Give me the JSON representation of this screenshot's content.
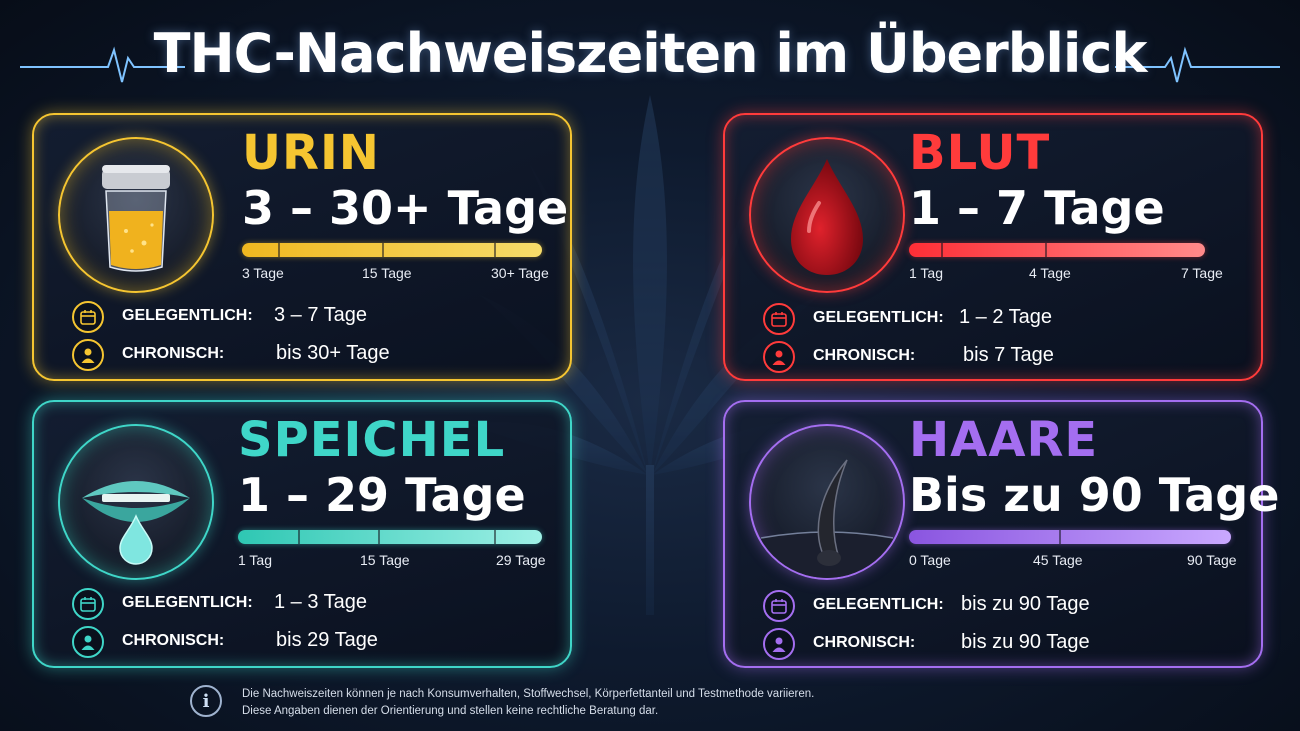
{
  "title": "THC-Nachweiszeiten im Überblick",
  "cards": {
    "urin": {
      "title": "URIN",
      "range": "3 – 30+ Tage",
      "ticks": [
        "3 Tage",
        "15 Tage",
        "30+ Tage"
      ],
      "occasional_label": "GELEGENTLICH:",
      "occasional_value": "3 – 7 Tage",
      "chronic_label": "CHRONISCH:",
      "chronic_value": "bis 30+ Tage",
      "color": "#f5c531"
    },
    "blut": {
      "title": "BLUT",
      "range": "1 – 7 Tage",
      "ticks": [
        "1 Tag",
        "4 Tage",
        "7 Tage"
      ],
      "occasional_label": "GELEGENTLICH:",
      "occasional_value": "1 – 2 Tage",
      "chronic_label": "CHRONISCH:",
      "chronic_value": "bis 7 Tage",
      "color": "#ff3b3b"
    },
    "speichel": {
      "title": "SPEICHEL",
      "range": "1 – 29 Tage",
      "ticks": [
        "1 Tag",
        "15 Tage",
        "29 Tage"
      ],
      "occasional_label": "GELEGENTLICH:",
      "occasional_value": "1 – 3 Tage",
      "chronic_label": "CHRONISCH:",
      "chronic_value": "bis 29 Tage",
      "color": "#3fd6c8"
    },
    "haare": {
      "title": "HAARE",
      "range": "Bis zu 90 Tage",
      "ticks": [
        "0 Tage",
        "45 Tage",
        "90 Tage"
      ],
      "occasional_label": "GELEGENTLICH:",
      "occasional_value": "bis zu 90 Tage",
      "chronic_label": "CHRONISCH:",
      "chronic_value": "bis zu 90 Tage",
      "color": "#a46ef0"
    }
  },
  "footer": {
    "line1": "Die Nachweiszeiten können je nach Konsumverhalten, Stoffwechsel, Körperfettanteil und Testmethode variieren.",
    "line2": "Diese Angaben dienen der Orientierung und stellen keine rechtliche Beratung dar."
  },
  "icons": [
    "heartbeat-icon",
    "cannabis-leaf-icon",
    "urine-cup-icon",
    "blood-drop-icon",
    "mouth-saliva-icon",
    "hair-follicle-icon",
    "calendar-icon",
    "person-icon",
    "info-icon"
  ]
}
